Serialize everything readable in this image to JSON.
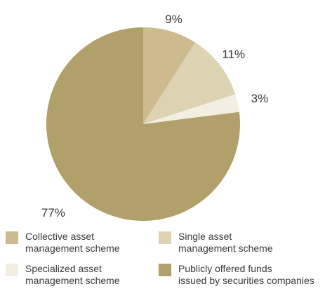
{
  "chart_data": {
    "type": "pie",
    "title": "",
    "start_angle_deg": 0,
    "direction": "clockwise",
    "slices": [
      {
        "label": "Collective asset\nmanagement scheme",
        "value": 9,
        "value_label": "9%",
        "color": "#cdbb8e"
      },
      {
        "label": "Single asset\nmanagement scheme",
        "value": 11,
        "value_label": "11%",
        "color": "#ddd2b2"
      },
      {
        "label": "Specialized asset\nmanagement scheme",
        "value": 3,
        "value_label": "3%",
        "color": "#f2eee1"
      },
      {
        "label": "Publicly offered funds\nissued by securities companies",
        "value": 77,
        "value_label": "77%",
        "color": "#b2a06a"
      }
    ],
    "legend_position": "bottom"
  }
}
